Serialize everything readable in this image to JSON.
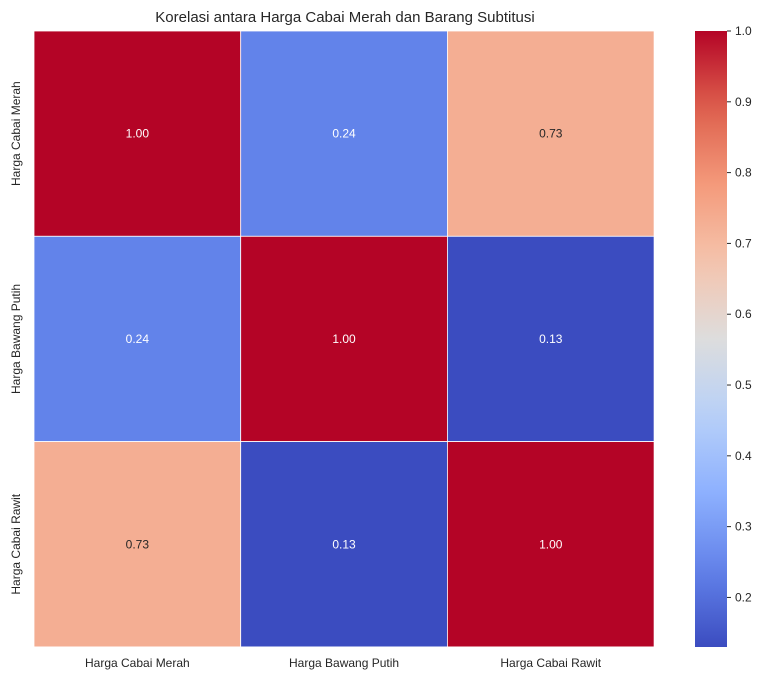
{
  "chart_data": {
    "type": "heatmap",
    "title": "Korelasi antara Harga Cabai Merah dan Barang Subtitusi",
    "x_categories": [
      "Harga Cabai Merah",
      "Harga Bawang Putih",
      "Harga Cabai Rawit"
    ],
    "y_categories": [
      "Harga Cabai Merah",
      "Harga Bawang Putih",
      "Harga Cabai Rawit"
    ],
    "values": [
      [
        1.0,
        0.24,
        0.73
      ],
      [
        0.24,
        1.0,
        0.13
      ],
      [
        0.73,
        0.13,
        1.0
      ]
    ],
    "cell_labels": [
      [
        "1.00",
        "0.24",
        "0.73"
      ],
      [
        "0.24",
        "1.00",
        "0.13"
      ],
      [
        "0.73",
        "0.13",
        "1.00"
      ]
    ],
    "colormap": "coolwarm",
    "color_range": [
      0.13,
      1.0
    ],
    "colorbar_ticks": [
      0.2,
      0.3,
      0.4,
      0.5,
      0.6,
      0.7,
      0.8,
      0.9,
      1.0
    ],
    "colorbar_tick_labels": [
      "0.2",
      "0.3",
      "0.4",
      "0.5",
      "0.6",
      "0.7",
      "0.8",
      "0.9",
      "1.0"
    ],
    "annotated": true,
    "legend": "colorbar-right"
  }
}
